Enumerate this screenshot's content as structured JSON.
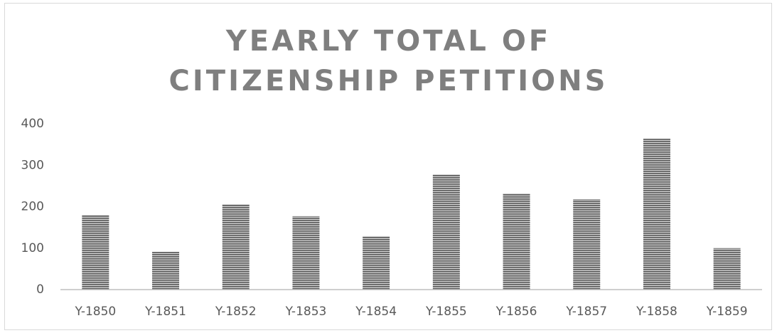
{
  "chart_data": {
    "type": "bar",
    "title": "YEARLY TOTAL OF CITIZENSHIP PETITIONS",
    "categories": [
      "Y-1850",
      "Y-1851",
      "Y-1852",
      "Y-1853",
      "Y-1854",
      "Y-1855",
      "Y-1856",
      "Y-1857",
      "Y-1858",
      "Y-1859"
    ],
    "values": [
      180,
      91,
      206,
      177,
      129,
      278,
      232,
      218,
      364,
      100
    ],
    "color": "#595959",
    "ylim": [
      0,
      400
    ],
    "yticks": [
      0,
      100,
      200,
      300,
      400
    ],
    "grid": false
  }
}
